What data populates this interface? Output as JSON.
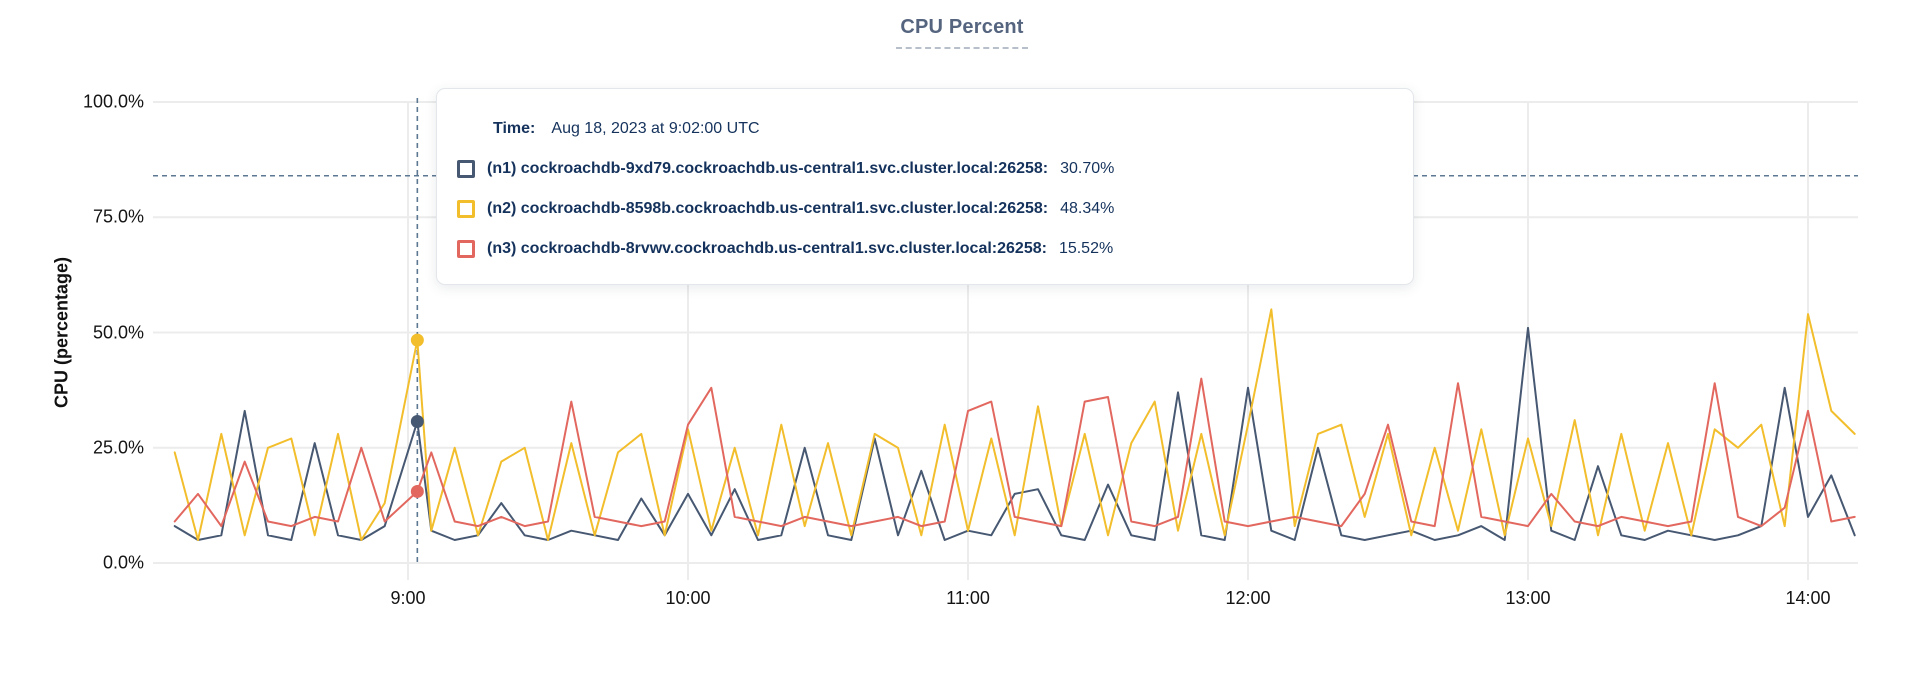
{
  "title": "CPU Percent",
  "y_axis": {
    "label": "CPU (percentage)",
    "tick_labels": [
      "0.0%",
      "25.0%",
      "50.0%",
      "75.0%",
      "100.0%"
    ],
    "tick_values": [
      0,
      25,
      50,
      75,
      100
    ]
  },
  "x_axis": {
    "tick_labels": [
      "9:00",
      "10:00",
      "11:00",
      "12:00",
      "13:00",
      "14:00"
    ],
    "tick_minutes": [
      60,
      120,
      180,
      240,
      300,
      360
    ]
  },
  "tooltip": {
    "time_label": "Time:",
    "time_value": "Aug 18, 2023 at 9:02:00 UTC",
    "rows": [
      {
        "name": "(n1) cockroachdb-9xd79.cockroachdb.us-central1.svc.cluster.local:26258:",
        "value": "30.70%",
        "color": "#475872"
      },
      {
        "name": "(n2) cockroachdb-8598b.cockroachdb.us-central1.svc.cluster.local:26258:",
        "value": "48.34%",
        "color": "#F2BE2C"
      },
      {
        "name": "(n3) cockroachdb-8rvwv.cockroachdb.us-central1.svc.cluster.local:26258:",
        "value": "15.52%",
        "color": "#E2685F"
      }
    ]
  },
  "colors": {
    "n1_line": "#475872",
    "n2_line": "#F2BE2C",
    "n3_line": "#E2685F",
    "gridline": "#ececec",
    "dashed_guide": "#5d7893",
    "title_text": "#56657f",
    "tooltip_text": "#14325c",
    "axis_text": "#141414"
  },
  "chart_data": {
    "type": "line",
    "title": "CPU Percent",
    "xlabel": "",
    "ylabel": "CPU (percentage)",
    "ylim": [
      0,
      100
    ],
    "grid": true,
    "x_unit": "minutes after 08:00 UTC",
    "sampling_interval_minutes": 5,
    "threshold_dashed_percent": 84,
    "hover": {
      "x_minutes": 62,
      "time": "Aug 18, 2023 at 9:02:00 UTC",
      "point_index": 10,
      "values": {
        "n1": 30.7,
        "n2": 48.34,
        "n3": 15.52
      }
    },
    "x": [
      10,
      15,
      20,
      25,
      30,
      35,
      40,
      45,
      50,
      55,
      62,
      65,
      70,
      75,
      80,
      85,
      90,
      95,
      100,
      105,
      110,
      115,
      120,
      125,
      130,
      135,
      140,
      145,
      150,
      155,
      160,
      165,
      170,
      175,
      180,
      185,
      190,
      195,
      200,
      205,
      210,
      215,
      220,
      225,
      230,
      235,
      240,
      245,
      250,
      255,
      260,
      265,
      270,
      275,
      280,
      285,
      290,
      295,
      300,
      305,
      310,
      315,
      320,
      325,
      330,
      335,
      340,
      345,
      350,
      355,
      360,
      365,
      370
    ],
    "series": [
      {
        "name": "(n1) cockroachdb-9xd79.cockroachdb.us-central1.svc.cluster.local:26258",
        "color": "#475872",
        "values": [
          8,
          5,
          6,
          33,
          6,
          5,
          26,
          6,
          5,
          8,
          30.7,
          7,
          5,
          6,
          13,
          6,
          5,
          7,
          6,
          5,
          14,
          6,
          15,
          6,
          16,
          5,
          6,
          25,
          6,
          5,
          27,
          6,
          20,
          5,
          7,
          6,
          15,
          16,
          6,
          5,
          17,
          6,
          5,
          37,
          6,
          5,
          38,
          7,
          5,
          25,
          6,
          5,
          6,
          7,
          5,
          6,
          8,
          5,
          51,
          7,
          5,
          21,
          6,
          5,
          7,
          6,
          5,
          6,
          8,
          38,
          10,
          19,
          6
        ]
      },
      {
        "name": "(n2) cockroachdb-8598b.cockroachdb.us-central1.svc.cluster.local:26258",
        "color": "#F2BE2C",
        "values": [
          24,
          5,
          28,
          6,
          25,
          27,
          6,
          28,
          5,
          13,
          48.34,
          7,
          25,
          6,
          22,
          25,
          5,
          26,
          6,
          24,
          28,
          6,
          29,
          7,
          25,
          6,
          30,
          8,
          26,
          6,
          28,
          25,
          6,
          30,
          7,
          27,
          6,
          34,
          8,
          28,
          6,
          26,
          35,
          7,
          28,
          6,
          30,
          55,
          8,
          28,
          30,
          10,
          28,
          6,
          25,
          7,
          29,
          6,
          27,
          8,
          31,
          6,
          28,
          7,
          26,
          6,
          29,
          25,
          30,
          8,
          54,
          33,
          28
        ]
      },
      {
        "name": "(n3) cockroachdb-8rvwv.cockroachdb.us-central1.svc.cluster.local:26258",
        "color": "#E2685F",
        "values": [
          9,
          15,
          8,
          22,
          9,
          8,
          10,
          9,
          25,
          9,
          15.52,
          24,
          9,
          8,
          10,
          8,
          9,
          35,
          10,
          9,
          8,
          9,
          30,
          38,
          10,
          9,
          8,
          10,
          9,
          8,
          9,
          10,
          8,
          9,
          33,
          35,
          10,
          9,
          8,
          35,
          36,
          9,
          8,
          10,
          40,
          9,
          8,
          9,
          10,
          9,
          8,
          15,
          30,
          9,
          8,
          39,
          10,
          9,
          8,
          15,
          9,
          8,
          10,
          9,
          8,
          9,
          39,
          10,
          8,
          12,
          33,
          9,
          10
        ]
      }
    ]
  }
}
